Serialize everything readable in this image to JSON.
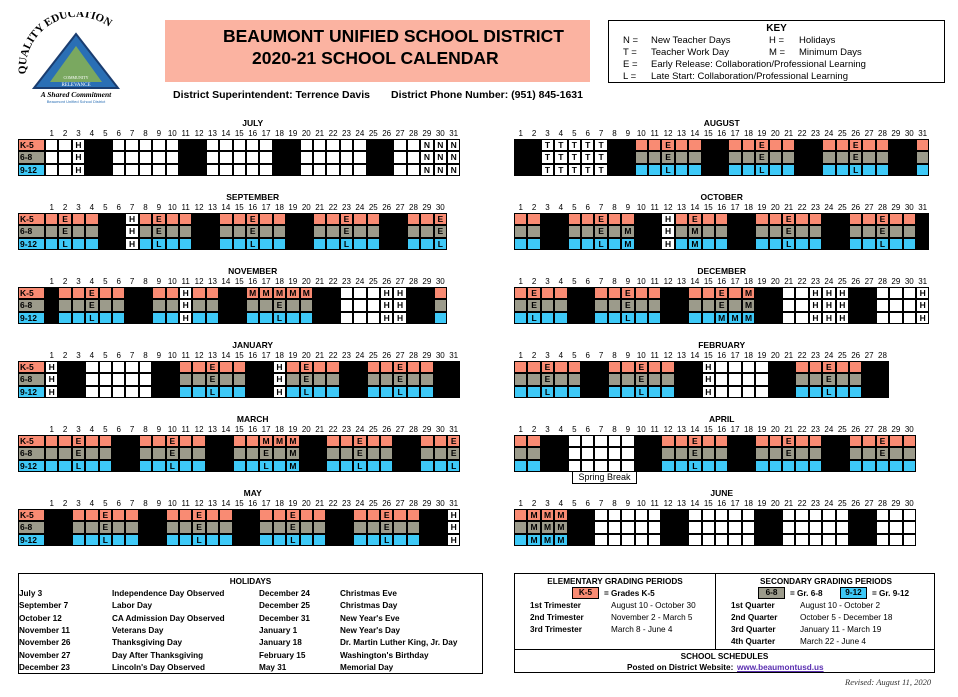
{
  "logo": {
    "arc_text": "QUALITY EDUCATION",
    "inner": "RELEVANCE",
    "community": "COMMUNITY",
    "tagline": "A Shared Commitment",
    "sub": "Beaumont Unified School District"
  },
  "header": {
    "title1": "BEAUMONT UNIFIED SCHOOL DISTRICT",
    "title2": "2020-21 SCHOOL CALENDAR",
    "superintendent": "District Superintendent:  Terrence Davis",
    "phone": "District Phone Number: (951) 845-1631"
  },
  "key": {
    "title": "KEY",
    "items": [
      {
        "code": "N =",
        "label": "New Teacher Days"
      },
      {
        "code": "H =",
        "label": "Holidays"
      },
      {
        "code": "T =",
        "label": "Teacher Work Day"
      },
      {
        "code": "M =",
        "label": "Minimum Days"
      },
      {
        "code": "E =",
        "label": "Early Release: Collaboration/Professional Learning"
      },
      {
        "code": "L =",
        "label": "Late Start: Collaboration/Professional Learning"
      }
    ]
  },
  "row_labels": [
    "K-5",
    "6-8",
    "9-12"
  ],
  "colors": {
    "k5": "#f98b73",
    "g68": "#9c9b8b",
    "g912": "#3ec9f7",
    "weekend": "#000000",
    "banner": "#fbb3a1"
  },
  "legend_codes": "x = weekend, s = school day, - = no school",
  "months": [
    {
      "name": "JULY",
      "rows": [
        "--Hxx-----xx-----xx-----xx--NNN",
        "--Hxx-----xx-----xx-----xx--NNN",
        "--Hxx-----xx-----xx-----xx--NNN"
      ]
    },
    {
      "name": "AUGUST",
      "rows": [
        "xxTTTTTxxssEssxxssEssxxssEssxxs",
        "xxTTTTTxxssEssxxssEssxxssEssxxs",
        "xxTTTTTxxssLssxxssLssxxssLssxxs"
      ]
    },
    {
      "name": "SEPTEMBER",
      "rows": [
        "sEssxxHsEssxxssEssxxssEssxxssE",
        "sEssxxHsEssxxssEssxxssEssxxssE",
        "sLssxxHsLssxxssLssxxssLssxxssL"
      ]
    },
    {
      "name": "OCTOBER",
      "rows": [
        "ssxxssEssxxHsEssxxssEssxxssEssx",
        "ssxxssEsMxxHsMssxxssEssxxssEssx",
        "ssxxssLsMxxHsMssxxssLssxxssLssx"
      ]
    },
    {
      "name": "NOVEMBER",
      "rows": [
        "xssEssxxssHssxxMMMMMxx---HHxxs",
        "xssEssxxssHssxxssEssxx---HHxxs",
        "xssLssxxssHssxxssLssxx---HHxxs"
      ]
    },
    {
      "name": "DECEMBER",
      "rows": [
        "sEssxxssEssxxssEsMxx--HHHxx---H",
        "sEssxxssEssxxssEsMxx--HHHxx---H",
        "sLssxxssLssxxssMMMxx--HHHxx---H"
      ]
    },
    {
      "name": "JANUARY",
      "rows": [
        "Hxx-----xxssEssxxHsEssxxssEssxx",
        "Hxx-----xxssEssxxHsEssxxssEssxx",
        "Hxx-----xxssLssxxHsLssxxssLssxx"
      ]
    },
    {
      "name": "FEBRUARY",
      "rows": [
        "ssEssxxssEssxxH----xxssEssxx",
        "ssEssxxssEssxxH----xxssEssxx",
        "ssLssxxssLssxxH----xxssLssxx"
      ]
    },
    {
      "name": "MARCH",
      "rows": [
        "ssEssxxssEssxxssMMMxxssEssxxssE",
        "ssEssxxssEssxxssEsMxxssEssxxssE",
        "ssLssxxssLssxxssLsMxxssLssxxssL"
      ]
    },
    {
      "name": "APRIL",
      "rows": [
        "ssxx-----xxssEssxxssEssxxssEss",
        "ssxx-----xxssEssxxssEssxxssEss",
        "ssxx-----xxssLssxxsssssxxsssss"
      ],
      "note": "Spring Break"
    },
    {
      "name": "MAY",
      "rows": [
        "xxssEssxxssEssxxssEssxxssEssxxH",
        "xxssEssxxssEssxxssEssxxssEssxxH",
        "xxssLssxxssLssxxssLssxxssLssxxH"
      ]
    },
    {
      "name": "JUNE",
      "rows": [
        "sMMMxx-----xx-----xx-----xx---",
        "sMMMxx-----xx-----xx-----xx---",
        "sMMMxx-----xx-----xx-----xx---"
      ]
    }
  ],
  "holidays": {
    "title": "HOLIDAYS",
    "items": [
      [
        "July 3",
        "Independence Day Observed"
      ],
      [
        "September 7",
        "Labor Day"
      ],
      [
        "October 12",
        "CA Admission Day Observed"
      ],
      [
        "November 11",
        "Veterans Day"
      ],
      [
        "November 26",
        "Thanksgiving Day"
      ],
      [
        "November 27",
        "Day After Thanksgiving"
      ],
      [
        "December 23",
        "Lincoln's Day Observed"
      ],
      [
        "December 24",
        "Christmas Eve"
      ],
      [
        "December 25",
        "Christmas Day"
      ],
      [
        "December 31",
        "New Year's Eve"
      ],
      [
        "January 1",
        "New Year's Day"
      ],
      [
        "January 18",
        "Dr. Martin Luther King, Jr. Day"
      ],
      [
        "February 15",
        "Washington's Birthday"
      ],
      [
        "May 31",
        "Memorial Day"
      ]
    ]
  },
  "grading": {
    "elem_title": "ELEMENTARY GRADING PERIODS",
    "elem_swatch": "K-5",
    "elem_eq": "=  Grades K-5",
    "elem": [
      [
        "1st Trimester",
        "August 10 - October 30"
      ],
      [
        "2nd Trimester",
        "November 2 - March 5"
      ],
      [
        "3rd Trimester",
        "March 8 - June 4"
      ]
    ],
    "sec_title": "SECONDARY GRADING PERIODS",
    "sec_sw1": "6-8",
    "sec_eq1": "=  Gr. 6-8",
    "sec_sw2": "9-12",
    "sec_eq2": "=  Gr. 9-12",
    "sec": [
      [
        "1st Quarter",
        "August 10 - October 2"
      ],
      [
        "2nd Quarter",
        "October 5 - December 18"
      ],
      [
        "3rd Quarter",
        "January 11 - March 19"
      ],
      [
        "4th Quarter",
        "March 22 - June 4"
      ]
    ],
    "sched_title": "SCHOOL SCHEDULES",
    "sched_text": "Posted on District Website:",
    "sched_link": "www.beaumontusd.us"
  },
  "revised": "Revised:  August 11, 2020"
}
